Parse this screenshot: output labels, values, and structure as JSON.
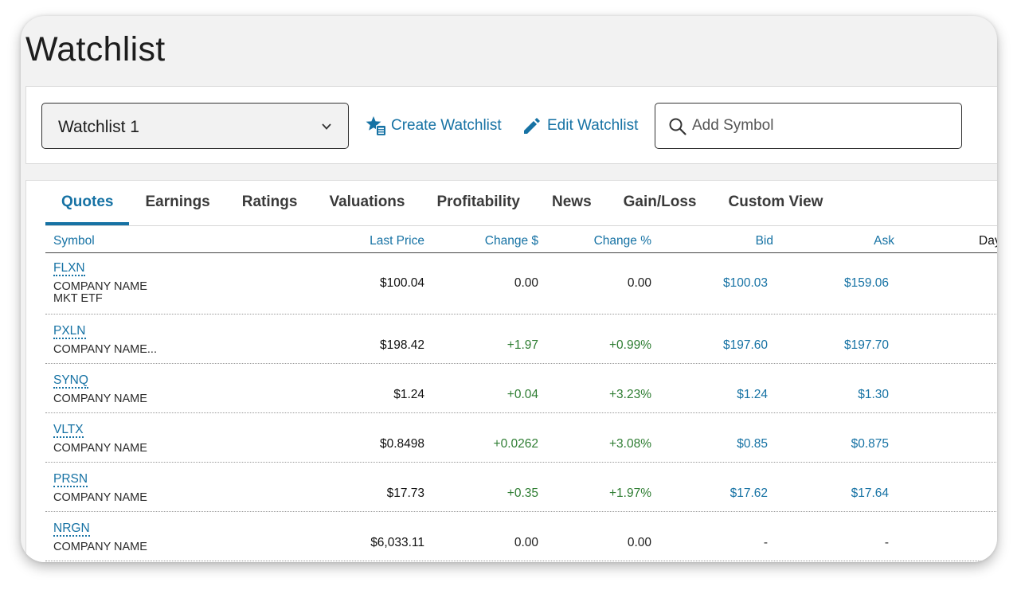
{
  "page_title": "Watchlist",
  "toolbar": {
    "watchlist_selected": "Watchlist 1",
    "create_label": "Create Watchlist",
    "edit_label": "Edit Watchlist",
    "search_placeholder": "Add Symbol"
  },
  "tabs": [
    "Quotes",
    "Earnings",
    "Ratings",
    "Valuations",
    "Profitability",
    "News",
    "Gain/Loss",
    "Custom View"
  ],
  "active_tab": "Quotes",
  "columns": {
    "symbol": "Symbol",
    "last_price": "Last Price",
    "change_dollar": "Change $",
    "change_pct": "Change %",
    "bid": "Bid",
    "ask": "Ask",
    "day_partial": "Day"
  },
  "rows": [
    {
      "symbol": "FLXN",
      "company": "COMPANY NAME",
      "company2": "MKT ETF",
      "last": "$100.04",
      "chg": "0.00",
      "pct": "0.00",
      "bid": "$100.03",
      "ask": "$159.06"
    },
    {
      "symbol": "PXLN",
      "company": "COMPANY NAME...",
      "company2": "",
      "last": "$198.42",
      "chg": "+1.97",
      "pct": "+0.99%",
      "bid": "$197.60",
      "ask": "$197.70"
    },
    {
      "symbol": "SYNQ",
      "company": "COMPANY NAME",
      "company2": "",
      "last": "$1.24",
      "chg": "+0.04",
      "pct": "+3.23%",
      "bid": "$1.24",
      "ask": "$1.30"
    },
    {
      "symbol": "VLTX",
      "company": "COMPANY NAME",
      "company2": "",
      "last": "$0.8498",
      "chg": "+0.0262",
      "pct": "+3.08%",
      "bid": "$0.85",
      "ask": "$0.875"
    },
    {
      "symbol": "PRSN",
      "company": "COMPANY NAME",
      "company2": "",
      "last": "$17.73",
      "chg": "+0.35",
      "pct": "+1.97%",
      "bid": "$17.62",
      "ask": "$17.64"
    },
    {
      "symbol": "NRGN",
      "company": "COMPANY NAME",
      "company2": "",
      "last": "$6,033.11",
      "chg": "0.00",
      "pct": "0.00",
      "bid": "-",
      "ask": "-"
    }
  ],
  "colors": {
    "accent": "#1672a4",
    "positive": "#2e7d32",
    "text": "#1d1d1d",
    "panel_bg": "#f2f2f2"
  }
}
